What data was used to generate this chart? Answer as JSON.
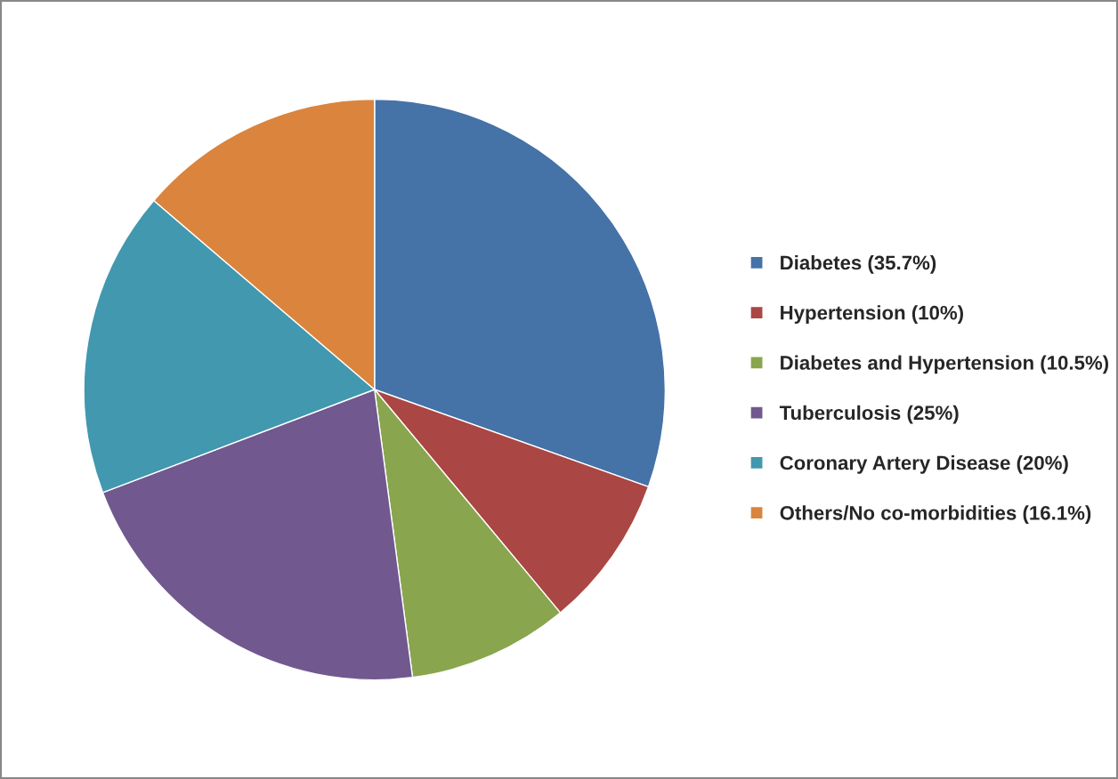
{
  "chart_data": {
    "type": "pie",
    "categories": [
      "Diabetes (35.7%)",
      "Hypertension (10%)",
      "Diabetes and Hypertension (10.5%)",
      "Tuberculosis (25%)",
      "Coronary Artery Disease (20%)",
      "Others/No co-morbidities (16.1%)"
    ],
    "values": [
      35.7,
      10,
      10.5,
      25,
      20,
      16.1
    ],
    "colors": [
      "#4572a7",
      "#aa4643",
      "#89a54e",
      "#71588f",
      "#4198af",
      "#db843d"
    ],
    "legend": "right"
  }
}
